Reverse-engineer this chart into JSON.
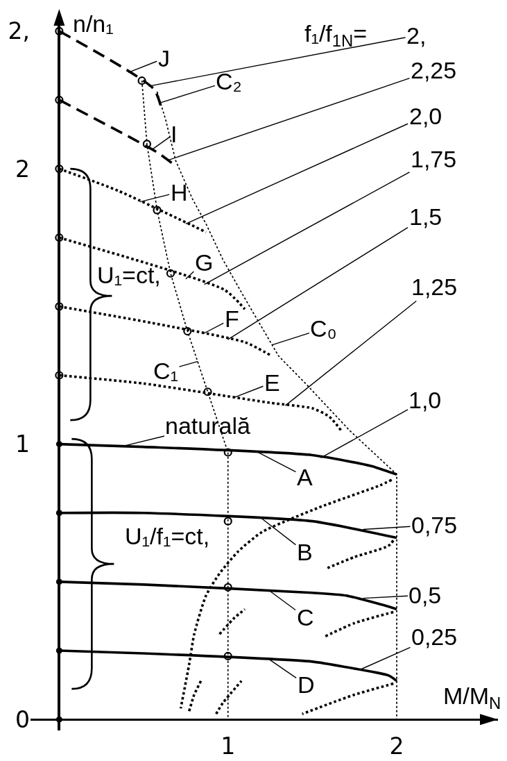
{
  "chart_data": {
    "type": "line",
    "xlabel": "M/M$_{N}$",
    "ylabel": "n/n₁",
    "xlim": [
      -0.17,
      2.6
    ],
    "ylim": [
      -0.04,
      2.55
    ],
    "xticks": [
      1,
      2
    ],
    "yticks": [
      0,
      1,
      2,
      {
        "value": 2.5,
        "label": "2,"
      }
    ],
    "grid": false,
    "series": [
      {
        "line_style": "solid",
        "color": "#000000",
        "x": [
          0,
          0.5,
          1.5,
          1.85,
          1.95,
          2
        ],
        "values": [
          1.0,
          0.99,
          0.96,
          0.92,
          0.9,
          0.89
        ]
      },
      {
        "line_style": "solid",
        "color": "#000000",
        "x": [
          0,
          0.5,
          1.5,
          1.92,
          2
        ],
        "values": [
          0.75,
          0.75,
          0.72,
          0.67,
          0.66
        ]
      },
      {
        "line_style": "solid",
        "color": "#000000",
        "x": [
          0,
          0.5,
          1.5,
          1.7,
          1.95,
          2
        ],
        "values": [
          0.5,
          0.49,
          0.46,
          0.45,
          0.41,
          0.4
        ]
      },
      {
        "line_style": "solid",
        "color": "#000000",
        "x": [
          0,
          0.5,
          1.5,
          1.7,
          1.95,
          2
        ],
        "values": [
          0.25,
          0.24,
          0.21,
          0.19,
          0.16,
          0.14
        ]
      },
      {
        "line_style": "dotted",
        "color": "#000000",
        "x": [
          1.97,
          1.9,
          1.54,
          1.2,
          1.06,
          0.95,
          0.87,
          0.8,
          0.77,
          0.72
        ],
        "values": [
          0.87,
          0.85,
          0.77,
          0.68,
          0.61,
          0.53,
          0.45,
          0.31,
          0.2,
          0.04
        ]
      },
      {
        "line_style": "dotted",
        "color": "#000000",
        "x": [
          1.98,
          1.95,
          1.75,
          1.59
        ],
        "values": [
          0.65,
          0.63,
          0.59,
          0.55
        ]
      },
      {
        "line_style": "dotted",
        "color": "#000000",
        "x": [
          1.98,
          1.75,
          1.57
        ],
        "values": [
          0.39,
          0.35,
          0.3
        ]
      },
      {
        "line_style": "dotted",
        "color": "#000000",
        "x": [
          1.98,
          1.75,
          1.44
        ],
        "values": [
          0.13,
          0.09,
          0.02
        ]
      },
      {
        "line_style": "dotted",
        "color": "#000000",
        "x": [
          0.77,
          0.8,
          0.84
        ],
        "values": [
          0.03,
          0.09,
          0.14
        ]
      },
      {
        "line_style": "dotted",
        "color": "#000000",
        "x": [
          0.93,
          0.97,
          1.08
        ],
        "values": [
          0.02,
          0.06,
          0.14
        ]
      },
      {
        "line_style": "dotted",
        "color": "#000000",
        "x": [
          0.95,
          1.04,
          1.1
        ],
        "values": [
          0.31,
          0.37,
          0.4
        ]
      },
      {
        "line_style": "dotted",
        "color": "#000000",
        "x": [
          0,
          0.5,
          1.25,
          1.5,
          1.6,
          1.67
        ],
        "values": [
          1.25,
          1.22,
          1.15,
          1.13,
          1.1,
          1.05
        ]
      },
      {
        "line_style": "dotted",
        "color": "#000000",
        "x": [
          0,
          0.55,
          1.1,
          1.26
        ],
        "values": [
          1.5,
          1.44,
          1.37,
          1.32
        ]
      },
      {
        "line_style": "dotted",
        "color": "#000000",
        "x": [
          0,
          0.98,
          1.1
        ],
        "values": [
          1.75,
          1.56,
          1.49
        ]
      },
      {
        "line_style": "dotted",
        "color": "#000000",
        "x": [
          0,
          0.35,
          0.87
        ],
        "values": [
          2.0,
          1.92,
          1.77
        ]
      },
      {
        "line_style": "dashed",
        "color": "#000000",
        "x": [
          0,
          0.58,
          0.67
        ],
        "values": [
          2.25,
          2.06,
          2.02
        ]
      },
      {
        "line_style": "dashed",
        "color": "#000000",
        "x": [
          0,
          0.56,
          0.61
        ],
        "values": [
          2.5,
          2.29,
          2.21
        ]
      },
      {
        "line_style": "dotted",
        "color": "#000000",
        "x": [
          0.49,
          0.52,
          0.58,
          0.66,
          0.76,
          0.88,
          1,
          1
        ],
        "values": [
          2.32,
          2.09,
          1.85,
          1.62,
          1.41,
          1.19,
          0.97,
          0
        ]
      },
      {
        "line_style": "dotted",
        "color": "#000000",
        "x": [
          0.58,
          0.63,
          0.69,
          0.79,
          0.87,
          0.97,
          1.09,
          1.3,
          1.46,
          1.72,
          2,
          2
        ],
        "values": [
          2.28,
          2.18,
          2.03,
          1.89,
          1.8,
          1.67,
          1.54,
          1.32,
          1.22,
          1.05,
          0.89,
          0
        ]
      },
      {
        "type": "scatter",
        "marker": "circle",
        "color": "#000000",
        "x": [
          0.49,
          0.52,
          0.58,
          0.66,
          0.76,
          0.88,
          1,
          1,
          1,
          1,
          0,
          0,
          0,
          0,
          0,
          0
        ],
        "values": [
          2.32,
          2.09,
          1.85,
          1.62,
          1.41,
          1.19,
          0.97,
          0.72,
          0.48,
          0.23,
          2.5,
          2.25,
          2.0,
          1.75,
          1.5,
          1.25
        ]
      },
      {
        "type": "scatter",
        "marker": "circle",
        "color": "#000000",
        "x": [
          0,
          0,
          0,
          0,
          0
        ],
        "values": [
          1.0,
          0.75,
          0.5,
          0.25,
          0
        ]
      }
    ],
    "annotations": [
      "f₁/f$_{1N}$=",
      {
        "text": "2,",
        "x": 0.53,
        "y": 2.3
      },
      {
        "text": "2,25",
        "x": 0.64,
        "y": 2.03
      },
      {
        "text": "2,0",
        "x": 0.75,
        "y": 1.8
      },
      {
        "text": "1,75",
        "x": 0.86,
        "y": 1.58
      },
      {
        "text": "1,5",
        "x": 1.0,
        "y": 1.38
      },
      {
        "text": "1,25",
        "x": 1.34,
        "y": 1.14
      },
      {
        "text": "1,0",
        "x": 1.55,
        "y": 0.95
      },
      {
        "text": "0,75",
        "x": 1.8,
        "y": 0.69
      },
      {
        "text": "0,5",
        "x": 1.8,
        "y": 0.44
      },
      {
        "text": "0,25",
        "x": 1.78,
        "y": 0.18
      },
      {
        "text": "J",
        "x": 0.41,
        "y": 2.35
      },
      {
        "text": "C₂",
        "x": 0.6,
        "y": 2.24
      },
      {
        "text": "I",
        "x": 0.55,
        "y": 2.07
      },
      {
        "text": "H",
        "x": 0.48,
        "y": 1.88
      },
      {
        "text": "G",
        "x": 0.75,
        "y": 1.6
      },
      {
        "text": "F",
        "x": 0.85,
        "y": 1.4
      },
      {
        "text": "E",
        "x": 1.04,
        "y": 1.17
      },
      {
        "text": "C₀",
        "x": 1.26,
        "y": 1.36
      },
      {
        "text": "C₁",
        "x": 0.82,
        "y": 1.3
      },
      {
        "text": "naturală",
        "x": 0.36,
        "y": 0.99
      },
      {
        "text": "A",
        "x": 1.18,
        "y": 0.97
      },
      {
        "text": "B",
        "x": 1.2,
        "y": 0.73
      },
      {
        "text": "C",
        "x": 1.24,
        "y": 0.47
      },
      {
        "text": "D",
        "x": 1.24,
        "y": 0.22
      },
      "U₁=ct,",
      "U₁/f₁=ct,"
    ]
  }
}
